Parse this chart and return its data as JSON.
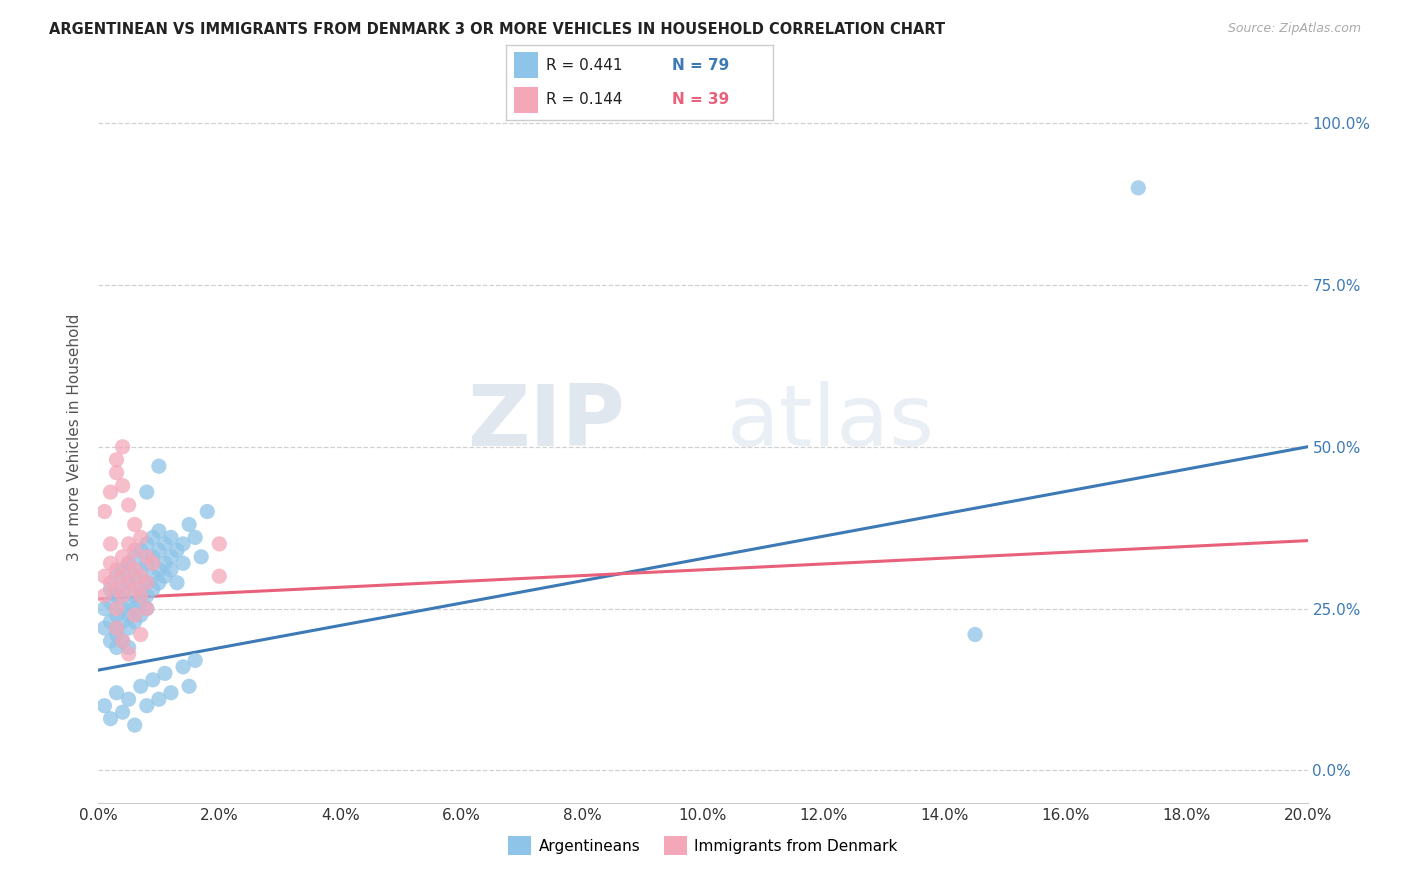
{
  "title": "ARGENTINEAN VS IMMIGRANTS FROM DENMARK 3 OR MORE VEHICLES IN HOUSEHOLD CORRELATION CHART",
  "source": "Source: ZipAtlas.com",
  "ylabel": "3 or more Vehicles in Household",
  "legend_label1": "Argentineans",
  "legend_label2": "Immigrants from Denmark",
  "legend_r1": "R = 0.441",
  "legend_n1": "N = 79",
  "legend_r2": "R = 0.144",
  "legend_n2": "N = 39",
  "color_blue": "#8ec4e8",
  "color_pink": "#f4a7b9",
  "line_color_blue": "#3d7ab5",
  "line_color_pink": "#e8607a",
  "watermark_zip": "ZIP",
  "watermark_atlas": "atlas",
  "xmin": 0.0,
  "xmax": 0.2,
  "ymin": -0.05,
  "ymax": 1.08,
  "blue_line_x0": 0.0,
  "blue_line_y0": 0.155,
  "blue_line_x1": 0.2,
  "blue_line_y1": 0.5,
  "pink_line_x0": 0.0,
  "pink_line_y0": 0.265,
  "pink_line_x1": 0.2,
  "pink_line_y1": 0.355,
  "blue_scatter_x": [
    0.001,
    0.001,
    0.002,
    0.002,
    0.002,
    0.002,
    0.003,
    0.003,
    0.003,
    0.003,
    0.003,
    0.003,
    0.004,
    0.004,
    0.004,
    0.004,
    0.004,
    0.005,
    0.005,
    0.005,
    0.005,
    0.005,
    0.005,
    0.006,
    0.006,
    0.006,
    0.006,
    0.006,
    0.007,
    0.007,
    0.007,
    0.007,
    0.007,
    0.008,
    0.008,
    0.008,
    0.008,
    0.008,
    0.009,
    0.009,
    0.009,
    0.009,
    0.01,
    0.01,
    0.01,
    0.01,
    0.011,
    0.011,
    0.011,
    0.012,
    0.012,
    0.012,
    0.013,
    0.013,
    0.014,
    0.014,
    0.015,
    0.016,
    0.017,
    0.018,
    0.001,
    0.002,
    0.003,
    0.004,
    0.005,
    0.006,
    0.007,
    0.008,
    0.009,
    0.01,
    0.011,
    0.012,
    0.014,
    0.015,
    0.016,
    0.008,
    0.01,
    0.172,
    0.145
  ],
  "blue_scatter_y": [
    0.22,
    0.25,
    0.23,
    0.26,
    0.2,
    0.28,
    0.24,
    0.27,
    0.21,
    0.19,
    0.3,
    0.22,
    0.25,
    0.28,
    0.31,
    0.23,
    0.2,
    0.26,
    0.29,
    0.32,
    0.24,
    0.22,
    0.19,
    0.27,
    0.3,
    0.33,
    0.25,
    0.23,
    0.28,
    0.31,
    0.34,
    0.26,
    0.24,
    0.29,
    0.32,
    0.35,
    0.27,
    0.25,
    0.3,
    0.33,
    0.36,
    0.28,
    0.31,
    0.34,
    0.37,
    0.29,
    0.32,
    0.35,
    0.3,
    0.33,
    0.36,
    0.31,
    0.34,
    0.29,
    0.35,
    0.32,
    0.38,
    0.36,
    0.33,
    0.4,
    0.1,
    0.08,
    0.12,
    0.09,
    0.11,
    0.07,
    0.13,
    0.1,
    0.14,
    0.11,
    0.15,
    0.12,
    0.16,
    0.13,
    0.17,
    0.43,
    0.47,
    0.9,
    0.21
  ],
  "pink_scatter_x": [
    0.001,
    0.001,
    0.002,
    0.002,
    0.002,
    0.003,
    0.003,
    0.003,
    0.004,
    0.004,
    0.004,
    0.005,
    0.005,
    0.005,
    0.006,
    0.006,
    0.006,
    0.007,
    0.007,
    0.008,
    0.008,
    0.001,
    0.002,
    0.003,
    0.004,
    0.005,
    0.006,
    0.007,
    0.008,
    0.009,
    0.003,
    0.004,
    0.005,
    0.006,
    0.007,
    0.003,
    0.004,
    0.02,
    0.02
  ],
  "pink_scatter_y": [
    0.27,
    0.3,
    0.29,
    0.32,
    0.35,
    0.28,
    0.31,
    0.25,
    0.3,
    0.33,
    0.27,
    0.32,
    0.29,
    0.35,
    0.31,
    0.28,
    0.34,
    0.3,
    0.27,
    0.33,
    0.29,
    0.4,
    0.43,
    0.46,
    0.44,
    0.41,
    0.38,
    0.36,
    0.25,
    0.32,
    0.22,
    0.2,
    0.18,
    0.24,
    0.21,
    0.48,
    0.5,
    0.35,
    0.3
  ]
}
